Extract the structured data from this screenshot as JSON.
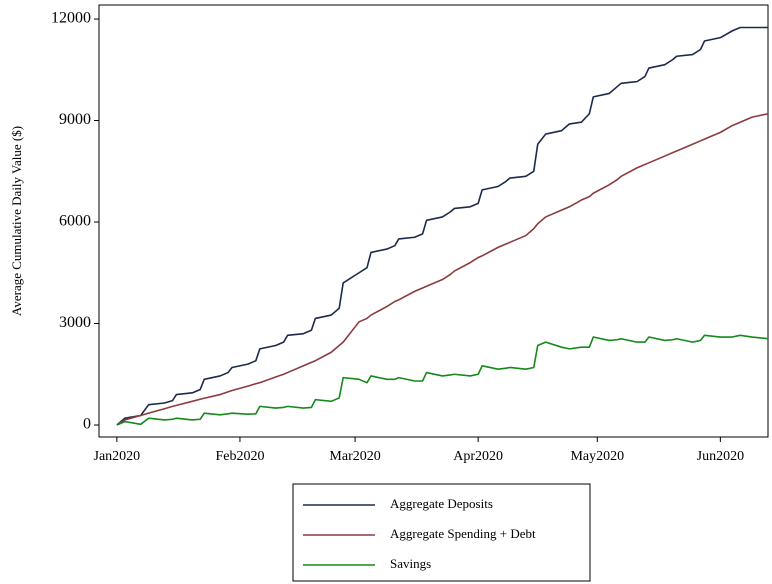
{
  "chart_data": {
    "type": "line",
    "y_label": "Average Cumulative Daily Value ($)",
    "x": [
      0,
      2,
      6,
      8,
      12,
      14,
      15,
      19,
      21,
      22,
      26,
      28,
      29,
      33,
      35,
      36,
      40,
      42,
      43,
      47,
      49,
      50,
      54,
      56,
      57,
      61,
      63,
      64,
      68,
      70,
      71,
      75,
      77,
      78,
      82,
      84,
      85,
      89,
      91,
      92,
      96,
      98,
      99,
      103,
      105,
      106,
      108,
      112,
      114,
      117,
      119,
      120,
      124,
      126,
      127,
      131,
      133,
      134,
      138,
      140,
      141,
      145,
      147,
      148,
      152,
      155,
      157,
      160,
      164
    ],
    "xlim": [
      -4.5,
      164
    ],
    "xticks": [
      {
        "value": 0,
        "label": "Jan2020"
      },
      {
        "value": 31,
        "label": "Feb2020"
      },
      {
        "value": 60,
        "label": "Mar2020"
      },
      {
        "value": 91,
        "label": "Apr2020"
      },
      {
        "value": 121,
        "label": "May2020"
      },
      {
        "value": 152,
        "label": "Jun2020"
      }
    ],
    "ylim": [
      -355,
      12415
    ],
    "yticks": [
      0,
      3000,
      6000,
      9000,
      12000
    ],
    "grid": false,
    "legend": "bottom",
    "series": [
      {
        "name": "Aggregate Deposits",
        "color": "#1c2a4c",
        "values": [
          0,
          200,
          280,
          600,
          650,
          720,
          900,
          950,
          1050,
          1350,
          1450,
          1550,
          1700,
          1800,
          1900,
          2250,
          2350,
          2450,
          2650,
          2700,
          2800,
          3150,
          3250,
          3450,
          4200,
          4500,
          4650,
          5100,
          5200,
          5300,
          5500,
          5550,
          5650,
          6050,
          6150,
          6300,
          6400,
          6450,
          6550,
          6950,
          7050,
          7200,
          7300,
          7350,
          7500,
          8300,
          8600,
          8700,
          8900,
          8950,
          9200,
          9700,
          9800,
          10000,
          10100,
          10150,
          10300,
          10550,
          10650,
          10800,
          10900,
          10950,
          11100,
          11350,
          11450,
          11650,
          11750,
          11750,
          11750
        ]
      },
      {
        "name": "Aggregate Spending + Debt",
        "color": "#8c3b3f",
        "values": [
          0,
          150,
          280,
          350,
          480,
          550,
          580,
          700,
          760,
          790,
          900,
          980,
          1020,
          1150,
          1220,
          1250,
          1420,
          1500,
          1550,
          1750,
          1850,
          1900,
          2150,
          2350,
          2450,
          3050,
          3150,
          3250,
          3500,
          3650,
          3700,
          3950,
          4050,
          4100,
          4300,
          4450,
          4550,
          4800,
          4950,
          5000,
          5250,
          5350,
          5400,
          5600,
          5800,
          5950,
          6150,
          6350,
          6450,
          6650,
          6750,
          6850,
          7100,
          7250,
          7350,
          7600,
          7700,
          7750,
          7950,
          8050,
          8100,
          8300,
          8400,
          8450,
          8650,
          8850,
          8950,
          9100,
          9200
        ]
      },
      {
        "name": "Savings",
        "color": "#16891a",
        "values": [
          0,
          100,
          20,
          200,
          150,
          170,
          200,
          150,
          170,
          350,
          300,
          330,
          350,
          320,
          330,
          550,
          500,
          520,
          550,
          500,
          520,
          750,
          700,
          800,
          1400,
          1350,
          1250,
          1450,
          1350,
          1350,
          1400,
          1300,
          1300,
          1550,
          1450,
          1480,
          1500,
          1450,
          1500,
          1750,
          1650,
          1680,
          1700,
          1650,
          1700,
          2350,
          2450,
          2300,
          2250,
          2300,
          2300,
          2600,
          2500,
          2520,
          2550,
          2450,
          2450,
          2600,
          2500,
          2520,
          2550,
          2450,
          2500,
          2650,
          2600,
          2600,
          2650,
          2600,
          2550
        ]
      }
    ]
  }
}
